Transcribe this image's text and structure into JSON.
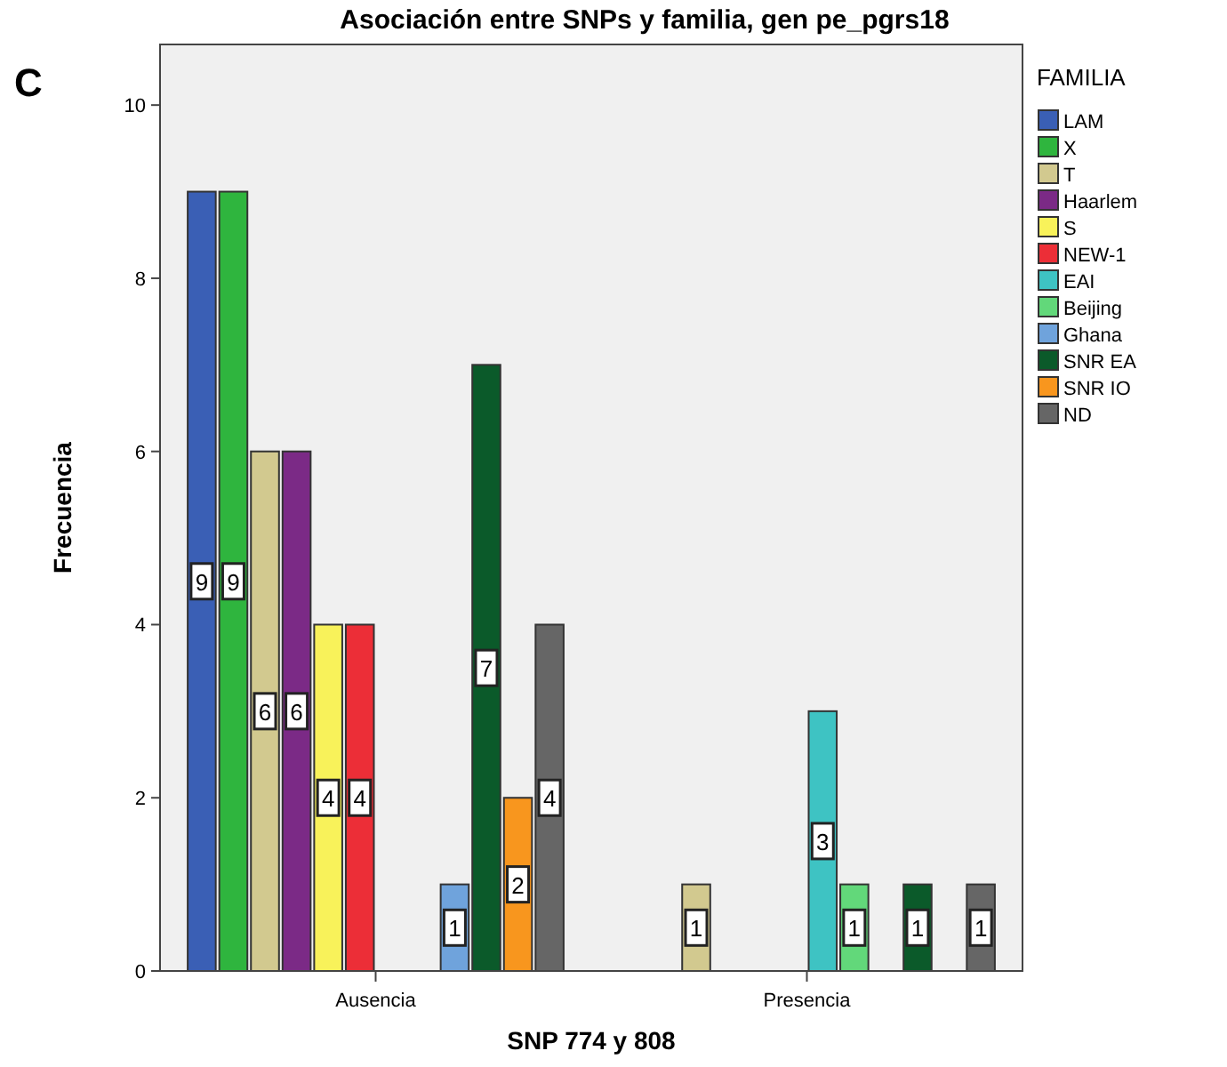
{
  "chart_data": {
    "type": "bar",
    "title": "Asociación entre SNPs y familia, gen pe_pgrs18",
    "xlabel": "SNP 774 y 808",
    "ylabel": "Frecuencia",
    "legend_title": "FAMILIA",
    "annotations": [
      "C"
    ],
    "categories": [
      "Ausencia",
      "Presencia"
    ],
    "series": [
      {
        "name": "LAM",
        "color": "#3a5fb5",
        "values": [
          9,
          null
        ]
      },
      {
        "name": "X",
        "color": "#2fb53e",
        "values": [
          9,
          null
        ]
      },
      {
        "name": "T",
        "color": "#d2c98f",
        "values": [
          6,
          1
        ]
      },
      {
        "name": "Haarlem",
        "color": "#7b2a86",
        "values": [
          6,
          null
        ]
      },
      {
        "name": "S",
        "color": "#f8f25a",
        "values": [
          4,
          null
        ]
      },
      {
        "name": "NEW-1",
        "color": "#ec2e37",
        "values": [
          4,
          null
        ]
      },
      {
        "name": "EAI",
        "color": "#3ec3c3",
        "values": [
          null,
          3
        ]
      },
      {
        "name": "Beijing",
        "color": "#62d87a",
        "values": [
          null,
          1
        ]
      },
      {
        "name": "Ghana",
        "color": "#6fa3dc",
        "values": [
          1,
          null
        ]
      },
      {
        "name": "SNR EA",
        "color": "#0b5a2a",
        "values": [
          7,
          1
        ]
      },
      {
        "name": "SNR IO",
        "color": "#f8961e",
        "values": [
          2,
          null
        ]
      },
      {
        "name": "ND",
        "color": "#666666",
        "values": [
          4,
          1
        ]
      }
    ],
    "ylim": [
      0,
      10.7
    ],
    "yticks": [
      0,
      2,
      4,
      6,
      8,
      10
    ],
    "data_labels": true,
    "legend": "top right",
    "grid": false
  }
}
